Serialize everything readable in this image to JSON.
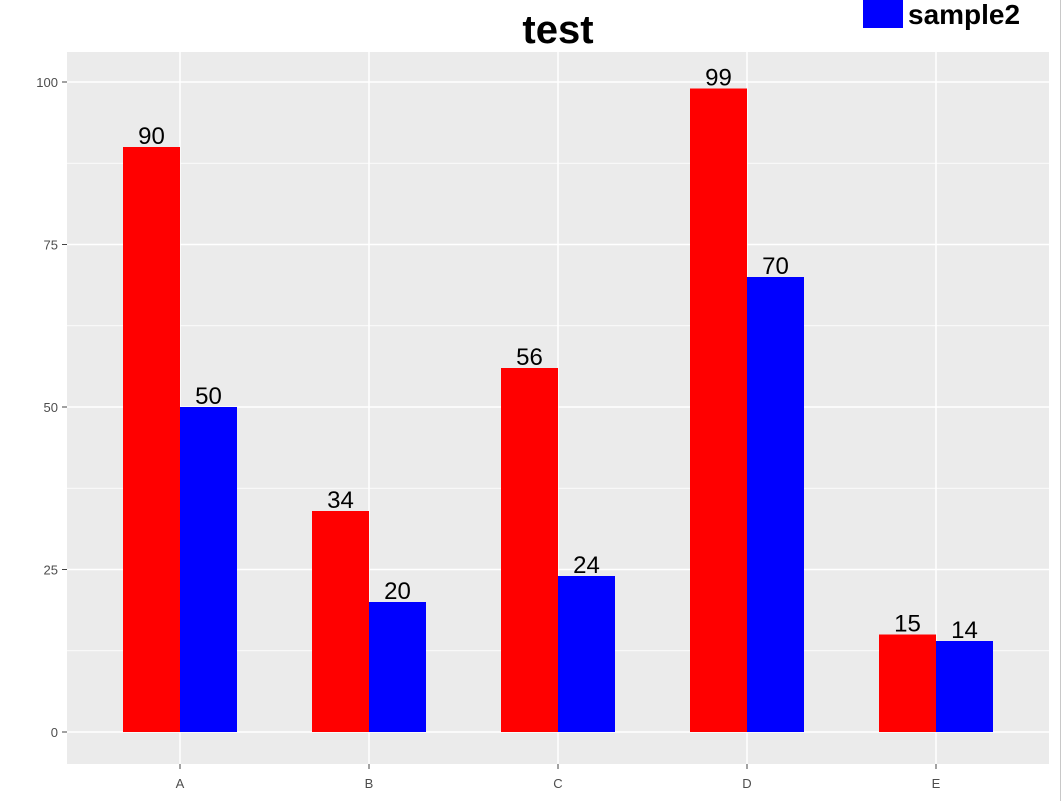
{
  "chart_data": {
    "type": "bar",
    "title": "test",
    "categories": [
      "A",
      "B",
      "C",
      "D",
      "E"
    ],
    "series": [
      {
        "values": [
          90,
          34,
          56,
          99,
          15
        ],
        "color": "#ff0000"
      },
      {
        "name": "sample2",
        "values": [
          50,
          20,
          24,
          70,
          14
        ],
        "color": "#0000ff"
      }
    ],
    "xlabel": "",
    "ylabel": "",
    "ylim": [
      -5,
      104
    ],
    "yticks": [
      "0",
      "25",
      "50",
      "75",
      "100"
    ],
    "grid": true,
    "legend": "top-right",
    "panel_background": "#ebebeb"
  }
}
